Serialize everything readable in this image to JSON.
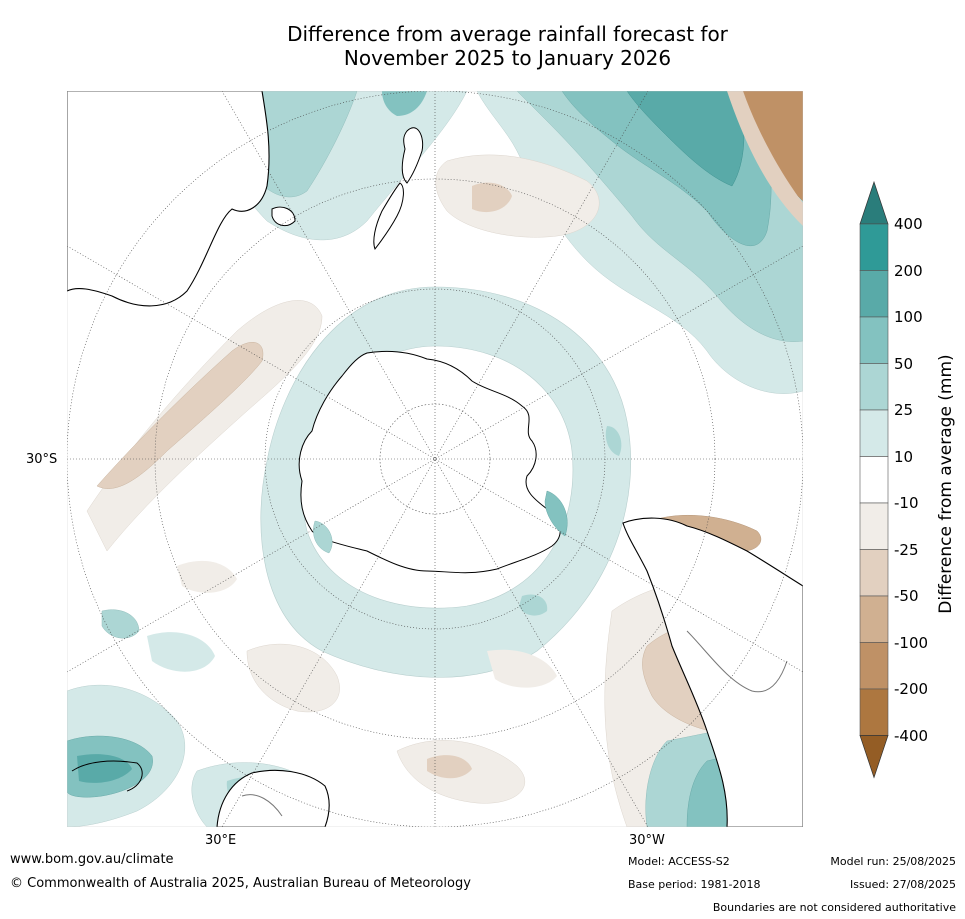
{
  "title": {
    "line1": "Difference from average rainfall forecast for",
    "line2": "November 2025 to January 2026"
  },
  "map": {
    "projection": "south-polar-stereographic",
    "graticule_labels": {
      "lat": "30°S",
      "lon_east": "30°E",
      "lon_west": "30°W"
    },
    "land_color": "#ffffff",
    "coastline_color": "#000000"
  },
  "colorbar": {
    "label": "Difference from average (mm)",
    "tick_labels": [
      "400",
      "200",
      "100",
      "50",
      "25",
      "10",
      "-10",
      "-25",
      "-50",
      "-100",
      "-200",
      "-400"
    ],
    "colors_top_to_bottom": [
      "#2a7d7b",
      "#2f9a97",
      "#59aaa8",
      "#83c2c0",
      "#acd6d4",
      "#d4e9e8",
      "#ffffff",
      "#f1ede8",
      "#e2d0c0",
      "#d0b091",
      "#bf9166",
      "#ad7740",
      "#945d25"
    ]
  },
  "footer": {
    "url": "www.bom.gov.au/climate",
    "copyright": "© Commonwealth of Australia 2025, Australian Bureau of Meteorology",
    "model": "Model: ACCESS-S2",
    "base_period": "Base period: 1981-2018",
    "model_run": "Model run: 25/08/2025",
    "issued": "Issued: 27/08/2025",
    "disclaimer": "Boundaries are not considered authoritative"
  }
}
